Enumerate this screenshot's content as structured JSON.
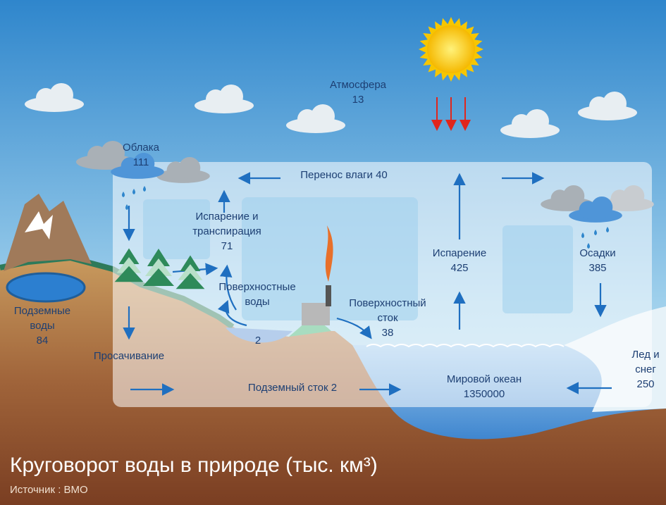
{
  "labels": [
    {
      "lines": [
        "Атмосфера",
        13
      ]
    },
    {
      "lines": [
        "Облака",
        111
      ]
    },
    {
      "lines": [
        "Перенос влаги 40"
      ]
    },
    {
      "lines": [
        "Испарение и",
        "транспирация",
        71
      ]
    },
    {
      "lines": [
        "Поверхностные",
        "воды"
      ]
    },
    {
      "lines": [
        2
      ]
    },
    {
      "lines": [
        "Поверхностный",
        "сток",
        38
      ]
    },
    {
      "lines": [
        "Испарение",
        425
      ]
    },
    {
      "lines": [
        "Осадки",
        385
      ]
    },
    {
      "lines": [
        "Подземные",
        "воды",
        84
      ]
    },
    {
      "lines": [
        "Просачивание"
      ]
    },
    {
      "lines": [
        "Подземный сток 2"
      ]
    },
    {
      "lines": [
        "Мировой океан",
        1350000
      ]
    },
    {
      "lines": [
        "Лед и",
        "снег",
        250
      ]
    }
  ],
  "title": "Круговорот воды в природе (тыс. км³)",
  "source": "Источник : ВМО"
}
